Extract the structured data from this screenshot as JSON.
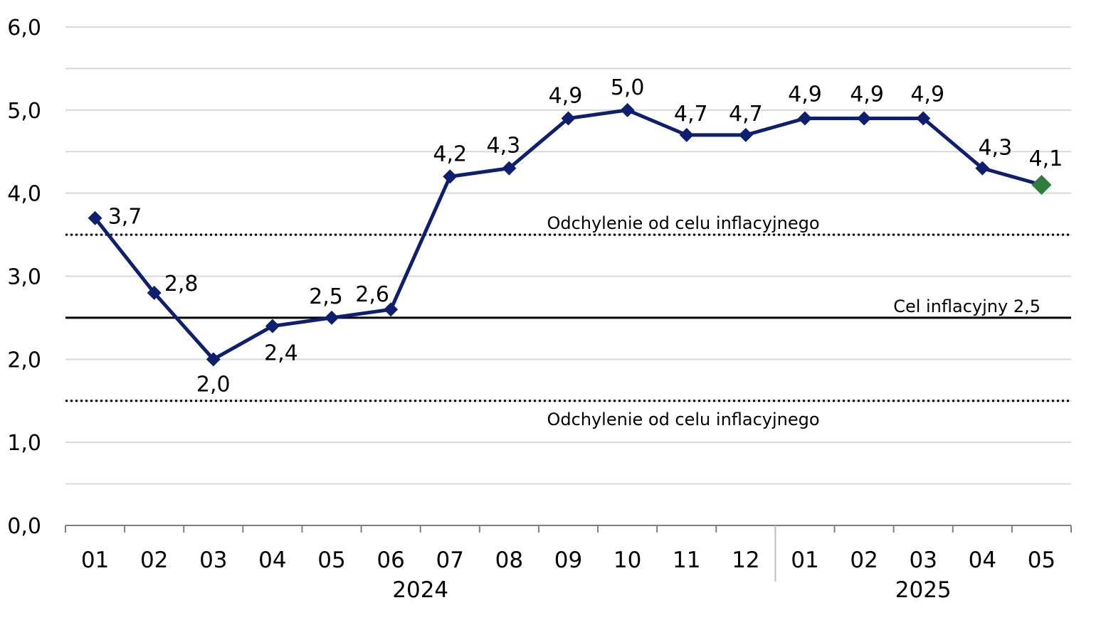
{
  "chart_data": {
    "type": "line",
    "title": "",
    "xlabel": "",
    "ylabel": "",
    "ylim": [
      0,
      6
    ],
    "yticks": [
      "0,0",
      "1,0",
      "2,0",
      "3,0",
      "4,0",
      "5,0",
      "6,0"
    ],
    "categories": [
      "01",
      "02",
      "03",
      "04",
      "05",
      "06",
      "07",
      "08",
      "09",
      "10",
      "11",
      "12",
      "01",
      "02",
      "03",
      "04",
      "05"
    ],
    "year_groups": [
      {
        "label": "2024",
        "count": 12
      },
      {
        "label": "2025",
        "count": 5
      }
    ],
    "series": [
      {
        "values": [
          3.7,
          2.8,
          2.0,
          2.4,
          2.5,
          2.6,
          4.2,
          4.3,
          4.9,
          5.0,
          4.7,
          4.7,
          4.9,
          4.9,
          4.9,
          4.3,
          4.1
        ],
        "labels": [
          "3,7",
          "2,8",
          "2,0",
          "2,4",
          "2,5",
          "2,6",
          "4,2",
          "4,3",
          "4,9",
          "5,0",
          "4,7",
          "4,7",
          "4,9",
          "4,9",
          "4,9",
          "4,3",
          "4,1"
        ],
        "color": "#0d1f6e",
        "last_point_color": "#2e7d3a"
      }
    ],
    "reference_lines": [
      {
        "value": 3.5,
        "style": "dotted",
        "label": "Odchylenie od celu inflacyjnego"
      },
      {
        "value": 2.5,
        "style": "solid",
        "label": "Cel inflacyjny 2,5"
      },
      {
        "value": 1.5,
        "style": "dotted",
        "label": "Odchylenie od celu inflacyjnego"
      }
    ],
    "grid": true,
    "legend": "none"
  }
}
